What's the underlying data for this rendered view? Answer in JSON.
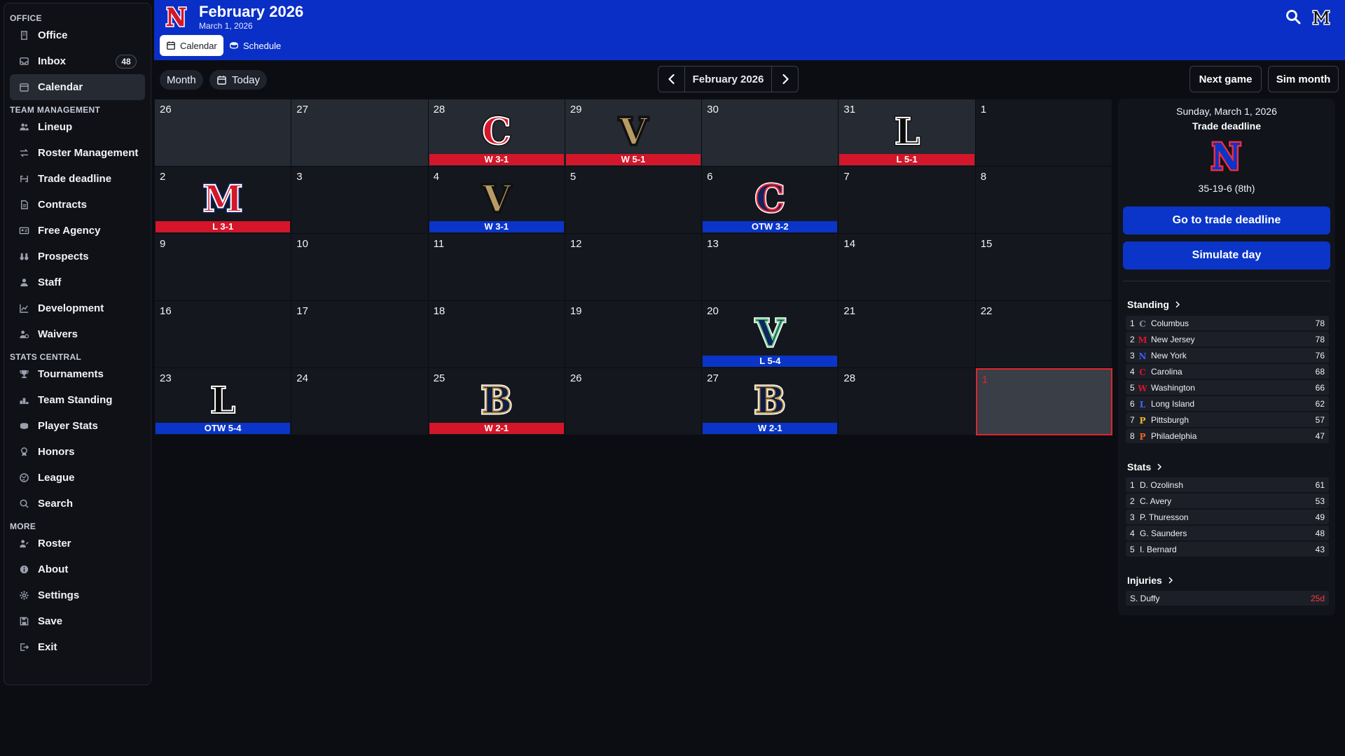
{
  "sidebar": {
    "sections": [
      {
        "title": "OFFICE",
        "items": [
          {
            "label": "Office",
            "icon": "office-icon"
          },
          {
            "label": "Inbox",
            "icon": "inbox-icon",
            "badge": "48"
          },
          {
            "label": "Calendar",
            "icon": "calendar-icon",
            "active": true
          }
        ]
      },
      {
        "title": "TEAM MANAGEMENT",
        "items": [
          {
            "label": "Lineup",
            "icon": "users-icon"
          },
          {
            "label": "Roster Management",
            "icon": "swap-icon"
          },
          {
            "label": "Trade deadline",
            "icon": "trade-icon"
          },
          {
            "label": "Contracts",
            "icon": "document-icon"
          },
          {
            "label": "Free Agency",
            "icon": "id-card-icon"
          },
          {
            "label": "Prospects",
            "icon": "binoculars-icon"
          },
          {
            "label": "Staff",
            "icon": "staff-icon"
          },
          {
            "label": "Development",
            "icon": "chart-line-icon"
          },
          {
            "label": "Waivers",
            "icon": "waivers-icon"
          }
        ]
      },
      {
        "title": "STATS CENTRAL",
        "items": [
          {
            "label": "Tournaments",
            "icon": "trophy-icon"
          },
          {
            "label": "Team Standing",
            "icon": "podium-icon"
          },
          {
            "label": "Player Stats",
            "icon": "puck-icon"
          },
          {
            "label": "Honors",
            "icon": "medal-icon"
          },
          {
            "label": "League",
            "icon": "globe-icon"
          },
          {
            "label": "Search",
            "icon": "search-icon"
          }
        ]
      },
      {
        "title": "MORE",
        "items": [
          {
            "label": "Roster",
            "icon": "roster-icon"
          },
          {
            "label": "About",
            "icon": "info-icon"
          },
          {
            "label": "Settings",
            "icon": "gear-icon"
          },
          {
            "label": "Save",
            "icon": "save-icon"
          },
          {
            "label": "Exit",
            "icon": "exit-icon"
          }
        ]
      }
    ]
  },
  "header": {
    "title": "February 2026",
    "subtitle": "March 1, 2026",
    "tabs": [
      {
        "label": "Calendar",
        "icon": "calendar-icon",
        "active": true
      },
      {
        "label": "Schedule",
        "icon": "schedule-icon",
        "active": false
      }
    ]
  },
  "toolbar": {
    "month_label": "Month",
    "today_label": "Today",
    "current_month": "February 2026",
    "next_game_label": "Next game",
    "sim_month_label": "Sim month"
  },
  "calendar": {
    "cells": [
      {
        "day": "26",
        "out": true
      },
      {
        "day": "27",
        "out": true
      },
      {
        "day": "28",
        "out": true,
        "logo": "C",
        "logo_style": "red",
        "result": "W 3-1",
        "result_type": "loss"
      },
      {
        "day": "29",
        "out": true,
        "logo": "V",
        "logo_style": "gold",
        "result": "W 5-1",
        "result_type": "loss"
      },
      {
        "day": "30",
        "out": true
      },
      {
        "day": "31",
        "out": true,
        "logo": "L",
        "logo_style": "black",
        "result": "L 5-1",
        "result_type": "loss"
      },
      {
        "day": "1"
      },
      {
        "day": "2",
        "logo": "M",
        "logo_style": "redm",
        "result": "L 3-1",
        "result_type": "loss"
      },
      {
        "day": "3"
      },
      {
        "day": "4",
        "logo": "V",
        "logo_style": "gold",
        "result": "W 3-1",
        "result_type": "win"
      },
      {
        "day": "5"
      },
      {
        "day": "6",
        "logo": "C",
        "logo_style": "navyc",
        "result": "OTW 3-2",
        "result_type": "win"
      },
      {
        "day": "7"
      },
      {
        "day": "8"
      },
      {
        "day": "9"
      },
      {
        "day": "10"
      },
      {
        "day": "11"
      },
      {
        "day": "12"
      },
      {
        "day": "13"
      },
      {
        "day": "14"
      },
      {
        "day": "15"
      },
      {
        "day": "16"
      },
      {
        "day": "17"
      },
      {
        "day": "18"
      },
      {
        "day": "19"
      },
      {
        "day": "20",
        "logo": "V",
        "logo_style": "navyv",
        "result": "L 5-4",
        "result_type": "win"
      },
      {
        "day": "21"
      },
      {
        "day": "22"
      },
      {
        "day": "23",
        "logo": "L",
        "logo_style": "black",
        "result": "OTW 5-4",
        "result_type": "win"
      },
      {
        "day": "24"
      },
      {
        "day": "25",
        "logo": "B",
        "logo_style": "navyb",
        "result": "W 2-1",
        "result_type": "loss"
      },
      {
        "day": "26"
      },
      {
        "day": "27",
        "logo": "B",
        "logo_style": "navyb",
        "result": "W 2-1",
        "result_type": "win"
      },
      {
        "day": "28"
      },
      {
        "day": "1",
        "today": true
      }
    ]
  },
  "panel": {
    "date": "Sunday, March 1, 2026",
    "event": "Trade deadline",
    "record": "35-19-6 (8th)",
    "trade_button": "Go to trade deadline",
    "sim_day_button": "Simulate day",
    "standing_title": "Standing",
    "standing": [
      {
        "rank": "1",
        "team": "Columbus",
        "value": "78",
        "color": "#8a8fa0",
        "letter": "C"
      },
      {
        "rank": "2",
        "team": "New Jersey",
        "value": "78",
        "color": "#d4162a",
        "letter": "M"
      },
      {
        "rank": "3",
        "team": "New York",
        "value": "76",
        "color": "#3a5cff",
        "letter": "N"
      },
      {
        "rank": "4",
        "team": "Carolina",
        "value": "68",
        "color": "#d4162a",
        "letter": "C"
      },
      {
        "rank": "5",
        "team": "Washington",
        "value": "66",
        "color": "#d4162a",
        "letter": "W"
      },
      {
        "rank": "6",
        "team": "Long Island",
        "value": "62",
        "color": "#3a6cff",
        "letter": "L"
      },
      {
        "rank": "7",
        "team": "Pittsburgh",
        "value": "57",
        "color": "#f5b82e",
        "letter": "P"
      },
      {
        "rank": "8",
        "team": "Philadelphia",
        "value": "47",
        "color": "#f26a1b",
        "letter": "P"
      }
    ],
    "stats_title": "Stats",
    "stats": [
      {
        "rank": "1",
        "player": "D. Ozolinsh",
        "value": "61"
      },
      {
        "rank": "2",
        "player": "C. Avery",
        "value": "53"
      },
      {
        "rank": "3",
        "player": "P. Thuresson",
        "value": "49"
      },
      {
        "rank": "4",
        "player": "G. Saunders",
        "value": "48"
      },
      {
        "rank": "5",
        "player": "I. Bernard",
        "value": "43"
      }
    ],
    "injuries_title": "Injuries",
    "injuries": [
      {
        "player": "S. Duffy",
        "value": "25d"
      }
    ]
  }
}
